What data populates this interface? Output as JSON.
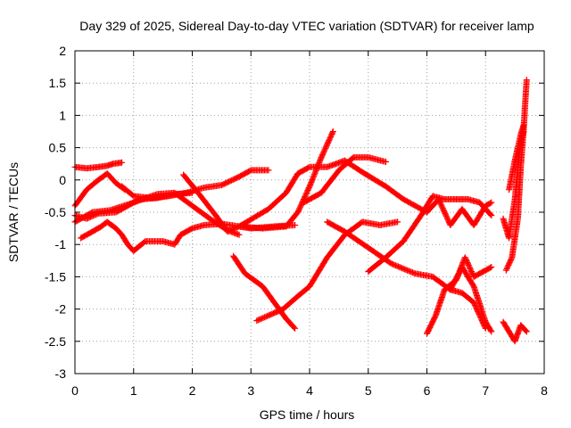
{
  "chart_data": {
    "type": "scatter",
    "title": "Day 329 of 2025, Sidereal Day-to-day VTEC variation (SDTVAR) for receiver lamp",
    "xlabel": "GPS time / hours",
    "ylabel": "SDTVAR / TECUs",
    "xlim": [
      0,
      8
    ],
    "ylim": [
      -3,
      2
    ],
    "xticks": [
      "0",
      "1",
      "2",
      "3",
      "4",
      "5",
      "6",
      "7",
      "8"
    ],
    "yticks": [
      "-3",
      "-2.5",
      "-2",
      "-1.5",
      "-1",
      "-0.5",
      "0",
      "0.5",
      "1",
      "1.5",
      "2"
    ],
    "grid": true,
    "marker": "plus",
    "color": "#ff0000",
    "series": [
      {
        "name": "s1",
        "x": [
          0.0,
          0.2,
          0.4,
          0.55,
          0.65,
          0.8
        ],
        "y": [
          0.2,
          0.18,
          0.2,
          0.22,
          0.25,
          0.27
        ]
      },
      {
        "name": "s2",
        "x": [
          0.0,
          0.2,
          0.4,
          0.55,
          0.7,
          0.85
        ],
        "y": [
          -0.4,
          -0.15,
          0.0,
          0.1,
          -0.05,
          -0.15
        ]
      },
      {
        "name": "s3",
        "x": [
          0.0,
          0.3,
          0.6,
          1.0,
          1.4,
          1.7,
          2.0,
          2.3,
          2.6,
          2.8
        ],
        "y": [
          -0.65,
          -0.5,
          -0.47,
          -0.35,
          -0.22,
          -0.2,
          -0.4,
          -0.6,
          -0.78,
          -0.85
        ]
      },
      {
        "name": "s4",
        "x": [
          0.0,
          0.2,
          0.4,
          0.7,
          0.9,
          1.1,
          1.4,
          1.7,
          2.0
        ],
        "y": [
          -0.55,
          -0.6,
          -0.52,
          -0.5,
          -0.4,
          -0.3,
          -0.28,
          -0.22,
          -0.2
        ]
      },
      {
        "name": "s5",
        "x": [
          0.1,
          0.3,
          0.45,
          0.55,
          0.7,
          0.8,
          0.9,
          1.0,
          1.2,
          1.5,
          1.7,
          1.8,
          2.0,
          2.2,
          2.5,
          2.8,
          3.2,
          3.6,
          3.8,
          4.0,
          4.2,
          4.4
        ],
        "y": [
          -0.9,
          -0.8,
          -0.72,
          -0.65,
          -0.75,
          -0.85,
          -1.0,
          -1.1,
          -0.95,
          -0.95,
          -1.0,
          -0.85,
          -0.75,
          -0.7,
          -0.68,
          -0.72,
          -0.75,
          -0.72,
          -0.5,
          -0.1,
          0.35,
          0.75
        ]
      },
      {
        "name": "s6",
        "x": [
          0.8,
          1.0,
          1.3,
          1.6,
          1.9,
          2.2,
          2.5,
          2.8,
          3.0,
          3.3
        ],
        "y": [
          -0.1,
          -0.25,
          -0.28,
          -0.25,
          -0.2,
          -0.12,
          -0.08,
          0.05,
          0.15,
          0.15
        ]
      },
      {
        "name": "s7",
        "x": [
          1.85,
          2.1,
          2.4,
          2.6,
          2.8,
          3.0,
          3.4,
          3.75
        ],
        "y": [
          0.08,
          -0.2,
          -0.55,
          -0.8,
          -0.72,
          -0.75,
          -0.72,
          -0.7
        ]
      },
      {
        "name": "s8",
        "x": [
          2.8,
          3.3,
          3.6,
          3.8,
          4.0,
          4.3,
          4.6,
          4.9,
          5.3,
          5.6,
          6.0,
          6.2,
          6.4,
          6.6,
          6.8,
          7.0,
          7.1
        ],
        "y": [
          -0.72,
          -0.45,
          -0.2,
          0.1,
          0.2,
          0.2,
          0.3,
          0.12,
          -0.1,
          -0.3,
          -0.5,
          -0.3,
          -0.7,
          -0.45,
          -0.7,
          -0.4,
          -0.35
        ]
      },
      {
        "name": "s9",
        "x": [
          2.7,
          2.9,
          3.2,
          3.4,
          3.6,
          3.75
        ],
        "y": [
          -1.18,
          -1.45,
          -1.65,
          -1.9,
          -2.15,
          -2.3
        ]
      },
      {
        "name": "s10",
        "x": [
          3.1,
          3.3,
          3.55,
          3.8,
          4.0,
          4.3,
          4.6,
          4.9,
          5.2,
          5.5
        ],
        "y": [
          -2.18,
          -2.1,
          -2.0,
          -1.8,
          -1.65,
          -1.2,
          -0.85,
          -0.65,
          -0.7,
          -0.65
        ]
      },
      {
        "name": "s11",
        "x": [
          3.9,
          4.2,
          4.5,
          4.75,
          5.0,
          5.3
        ],
        "y": [
          -0.35,
          -0.2,
          0.15,
          0.35,
          0.35,
          0.28
        ]
      },
      {
        "name": "s12",
        "x": [
          4.3,
          4.6,
          5.0,
          5.4,
          5.8,
          6.1,
          6.4,
          6.6,
          6.8,
          7.0
        ],
        "y": [
          -0.65,
          -0.8,
          -1.05,
          -1.3,
          -1.45,
          -1.5,
          -1.7,
          -1.75,
          -1.9,
          -2.3
        ]
      },
      {
        "name": "s13",
        "x": [
          5.0,
          5.3,
          5.6,
          5.9,
          6.1,
          6.3,
          6.5,
          6.7,
          6.9,
          7.1
        ],
        "y": [
          -1.42,
          -1.2,
          -0.95,
          -0.55,
          -0.25,
          -0.3,
          -0.3,
          -0.3,
          -0.35,
          -0.55
        ]
      },
      {
        "name": "s14",
        "x": [
          6.0,
          6.15,
          6.3,
          6.5,
          6.65,
          6.8,
          7.0,
          7.1
        ],
        "y": [
          -2.38,
          -2.1,
          -1.7,
          -1.55,
          -1.2,
          -1.5,
          -1.4,
          -1.35
        ]
      },
      {
        "name": "s15",
        "x": [
          6.4,
          6.6,
          6.8,
          7.0,
          7.1
        ],
        "y": [
          -1.7,
          -1.35,
          -1.65,
          -2.2,
          -2.35
        ]
      },
      {
        "name": "s16",
        "x": [
          7.35,
          7.45,
          7.55,
          7.6,
          7.65,
          7.7
        ],
        "y": [
          -1.4,
          -1.2,
          -0.6,
          0.2,
          0.8,
          1.55
        ]
      },
      {
        "name": "s17",
        "x": [
          7.3,
          7.4,
          7.5,
          7.55,
          7.6,
          7.65
        ],
        "y": [
          -0.6,
          -0.9,
          -0.3,
          0.2,
          0.6,
          0.75
        ]
      },
      {
        "name": "s18",
        "x": [
          7.4,
          7.5,
          7.6,
          7.65
        ],
        "y": [
          -0.15,
          0.3,
          0.7,
          0.85
        ]
      },
      {
        "name": "s19",
        "x": [
          7.3,
          7.4,
          7.5,
          7.6,
          7.7
        ],
        "y": [
          -2.2,
          -2.35,
          -2.5,
          -2.25,
          -2.35
        ]
      }
    ]
  }
}
